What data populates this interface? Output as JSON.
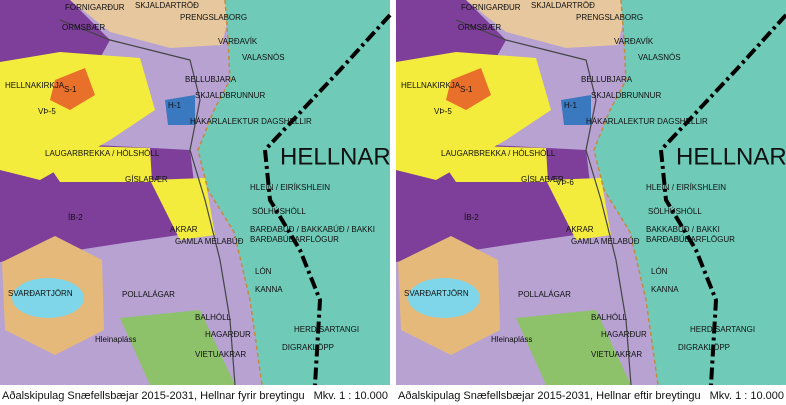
{
  "panels": [
    {
      "caption": "Aðalskipulag Snæfellsbæjar 2015-2031, Hellnar fyrir breytingu",
      "scale": "Mkv. 1 : 10.000",
      "labels": [
        "FORNIGARÐUR",
        "ORMSBÆR",
        "SKJALDARTRÖÐ",
        "PRENGSLABORG",
        "VARÐAVÍK",
        "VALASNÓS",
        "HELLNAKIRKJA",
        "S-1",
        "VÞ-5",
        "H-1",
        "BELLUBJARA",
        "SKJALDBRUNNUR",
        "HÁKARLALEKTUR DAGSHELLIR",
        "LAUGARBREKKA / HÓLSHÓLL",
        "GÍSLABÆR",
        "HELLNAR",
        "ÍB-2",
        "HLEIN / EIRÍKSHLEIN",
        "SÖLHÚSHÓLL",
        "BARÐABÚÐ / BAKKABÚÐ / BAKKI",
        "BARÐABÚÐARFLÖGUR",
        "AKRAR",
        "GAMLA MELABÚÐ",
        "SVARÐARTJÖRN",
        "POLLALÁGAR",
        "LÓN",
        "KANNA",
        "BALHÓLL",
        "HERDÍSARTANGI",
        "Hleinapláss",
        "HAGARÐUR",
        "DIGRAKLÖPP",
        "VIETUAKRAR"
      ]
    },
    {
      "caption": "Aðalskipulag Snæfellsbæjar 2015-2031, Hellnar eftir breytingu",
      "scale": "Mkv. 1 : 10.000",
      "labels": [
        "FORNIGARÐUR",
        "ORMSBÆR",
        "SKJALDARTRÖÐ",
        "PRENGSLABORG",
        "VARÐAVÍK",
        "VALASNÓS",
        "HELLNAKIRKJA",
        "S-1",
        "VÞ-5",
        "H-1",
        "BELLUBJARA",
        "SKJALDBRUNNUR",
        "HÁKARLALEKTUR DAGSHELLIR",
        "LAUGARBREKKA / HÓLSHÓLL",
        "GÍSLABÆR",
        "HELLNAR",
        "ÍB-2",
        "HLEIN / EIRÍKSHLEIN",
        "SÖLHÚSHÓLL",
        "BAKKABÚÐ / BAKKI",
        "BARÐABÚÐARFLÖGUR",
        "AKRAR",
        "GAMLA MELABÚÐ",
        "SVARÐARTJÖRN",
        "POLLALÁGAR",
        "LÓN",
        "KANNA",
        "BALHÓLL",
        "HERDÍSARTANGI",
        "Hleinapláss",
        "HAGARÐUR",
        "DIGRAKLÖPP",
        "VIETUAKRAR",
        "VÞ-6"
      ]
    }
  ]
}
